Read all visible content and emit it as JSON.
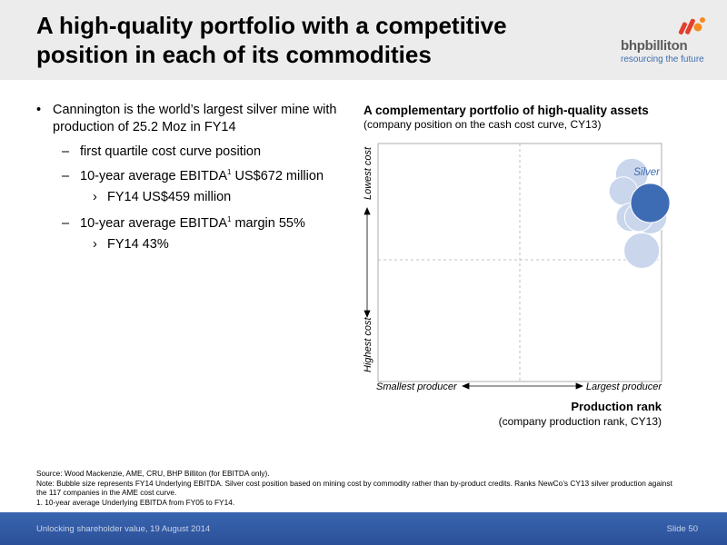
{
  "slide": {
    "title_line1": "A high-quality portfolio with a competitive",
    "title_line2": "position in each of its commodities"
  },
  "logo": {
    "brand": "bhpbilliton",
    "tagline": "resourcing the future",
    "colors": [
      "#e2402c",
      "#f58a1f"
    ]
  },
  "bullets": {
    "main": "Cannington is the world’s largest silver mine with production of 25.2 Moz in FY14",
    "sub1": "first quartile cost curve position",
    "sub2_pre": "10-year average EBITDA",
    "sub2_sup": "1",
    "sub2_post": " US$672 million",
    "sub2_child": "FY14 US$459 million",
    "sub3_pre": "10-year average EBITDA",
    "sub3_sup": "1",
    "sub3_post": " margin 55%",
    "sub3_child": "FY14 43%"
  },
  "chart_data": {
    "type": "scatter",
    "title": "A complementary portfolio of high-quality assets",
    "subtitle": "(company position on the cash cost curve, CY13)",
    "xlabel": "Production rank",
    "xlabel_sub": "(company production rank, CY13)",
    "x_left_label": "Smallest producer",
    "x_right_label": "Largest producer",
    "y_top_label": "Lowest cost",
    "y_bottom_label": "Highest cost",
    "xlim": [
      0,
      1
    ],
    "ylim": [
      0,
      1
    ],
    "quadrant_dividers": true,
    "highlight_label": "Silver",
    "highlight_color": "#3e6cb4",
    "bubble_color": "#c9d6ec",
    "points": [
      {
        "x": 0.895,
        "y": 0.87,
        "size": 0.58,
        "highlight": false
      },
      {
        "x": 0.865,
        "y": 0.8,
        "size": 0.45,
        "highlight": false
      },
      {
        "x": 0.96,
        "y": 0.69,
        "size": 0.6,
        "highlight": false
      },
      {
        "x": 0.89,
        "y": 0.69,
        "size": 0.45,
        "highlight": false
      },
      {
        "x": 0.93,
        "y": 0.55,
        "size": 0.68,
        "highlight": false
      },
      {
        "x": 0.92,
        "y": 0.69,
        "size": 0.45,
        "highlight": false
      },
      {
        "x": 0.96,
        "y": 0.75,
        "size": 0.8,
        "highlight": true
      }
    ]
  },
  "notes": {
    "source": "Source:   Wood Mackenzie, AME, CRU, BHP Billiton (for EBITDA only).",
    "note": "Note:  Bubble size represents FY14 Underlying EBITDA. Silver cost position based on mining cost by commodity rather than by-product credits. Ranks NewCo’s CY13 silver production against the 117 companies in the AME cost curve.",
    "footnote": "1.  10-year average Underlying EBITDA from FY05 to FY14."
  },
  "footer": {
    "left": "Unlocking shareholder value, 19 August 2014",
    "right": "Slide 50"
  }
}
